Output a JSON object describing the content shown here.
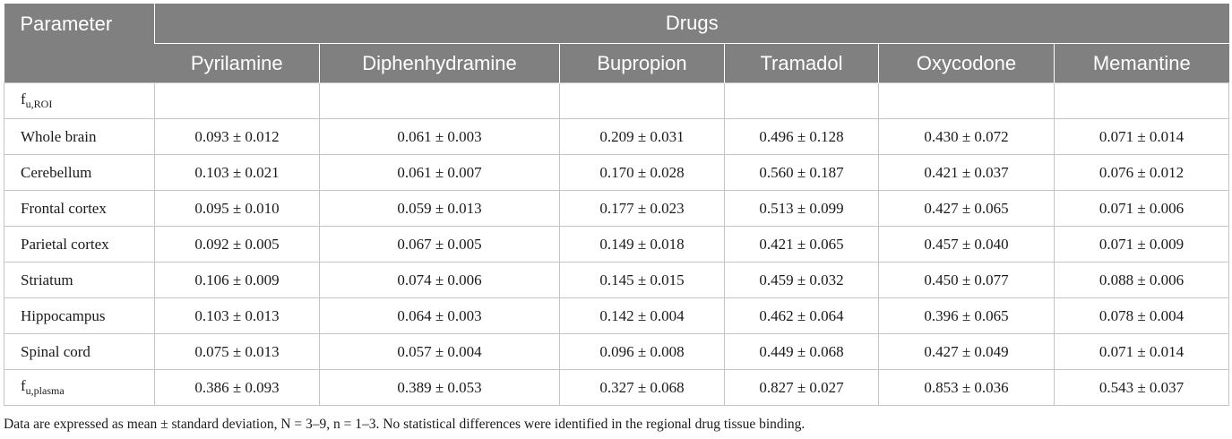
{
  "header": {
    "parameter_label": "Parameter",
    "group_label": "Drugs",
    "drugs": [
      "Pyrilamine",
      "Diphenhydramine",
      "Bupropion",
      "Tramadol",
      "Oxycodone",
      "Memantine"
    ]
  },
  "rows": {
    "fu_roi": {
      "base": "f",
      "sub": "u,ROI"
    },
    "data": [
      {
        "label": "Whole brain",
        "values": [
          "0.093 ± 0.012",
          "0.061 ± 0.003",
          "0.209 ± 0.031",
          "0.496 ± 0.128",
          "0.430 ± 0.072",
          "0.071 ± 0.014"
        ]
      },
      {
        "label": "Cerebellum",
        "values": [
          "0.103 ± 0.021",
          "0.061 ± 0.007",
          "0.170 ± 0.028",
          "0.560 ± 0.187",
          "0.421 ± 0.037",
          "0.076 ± 0.012"
        ]
      },
      {
        "label": "Frontal cortex",
        "values": [
          "0.095 ± 0.010",
          "0.059 ± 0.013",
          "0.177 ± 0.023",
          "0.513 ± 0.099",
          "0.427 ± 0.065",
          "0.071 ± 0.006"
        ]
      },
      {
        "label": "Parietal cortex",
        "values": [
          "0.092 ± 0.005",
          "0.067 ± 0.005",
          "0.149 ± 0.018",
          "0.421 ± 0.065",
          "0.457 ± 0.040",
          "0.071 ± 0.009"
        ]
      },
      {
        "label": "Striatum",
        "values": [
          "0.106 ± 0.009",
          "0.074 ± 0.006",
          "0.145 ± 0.015",
          "0.459 ± 0.032",
          "0.450 ± 0.077",
          "0.088 ± 0.006"
        ]
      },
      {
        "label": "Hippocampus",
        "values": [
          "0.103 ± 0.013",
          "0.064 ± 0.003",
          "0.142 ± 0.004",
          "0.462 ± 0.064",
          "0.396 ± 0.065",
          "0.078 ± 0.004"
        ]
      },
      {
        "label": "Spinal cord",
        "values": [
          "0.075 ± 0.013",
          "0.057 ± 0.004",
          "0.096 ± 0.008",
          "0.449 ± 0.068",
          "0.427 ± 0.049",
          "0.071 ± 0.014"
        ]
      }
    ],
    "fu_plasma": {
      "base": "f",
      "sub": "u,plasma",
      "values": [
        "0.386 ± 0.093",
        "0.389 ± 0.053",
        "0.327 ± 0.068",
        "0.827 ± 0.027",
        "0.853 ± 0.036",
        "0.543 ± 0.037"
      ]
    }
  },
  "footnote": "Data are expressed as mean ± standard deviation, N = 3–9, n = 1–3. No statistical differences were identified in the regional drug tissue binding."
}
